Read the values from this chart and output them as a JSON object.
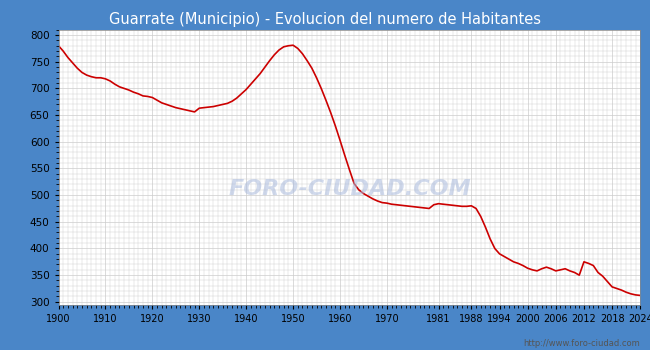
{
  "title": "Guarrate (Municipio) - Evolucion del numero de Habitantes",
  "title_color": "#ffffff",
  "title_bg_color": "#4a86c8",
  "line_color": "#cc0000",
  "bg_color": "#ffffff",
  "grid_color": "#cccccc",
  "url": "http://www.foro-ciudad.com",
  "watermark": "FORO-CIUDAD.COM",
  "ylim": [
    295,
    810
  ],
  "yticks": [
    300,
    350,
    400,
    450,
    500,
    550,
    600,
    650,
    700,
    750,
    800
  ],
  "xticks": [
    1900,
    1910,
    1920,
    1930,
    1940,
    1950,
    1960,
    1970,
    1981,
    1988,
    1994,
    2000,
    2006,
    2012,
    2018,
    2024
  ],
  "years": [
    1900,
    1901,
    1902,
    1903,
    1904,
    1905,
    1906,
    1907,
    1908,
    1909,
    1910,
    1911,
    1912,
    1913,
    1914,
    1915,
    1916,
    1917,
    1918,
    1919,
    1920,
    1921,
    1922,
    1923,
    1924,
    1925,
    1926,
    1927,
    1928,
    1929,
    1930,
    1931,
    1932,
    1933,
    1934,
    1935,
    1936,
    1937,
    1938,
    1939,
    1940,
    1941,
    1942,
    1943,
    1944,
    1945,
    1946,
    1947,
    1948,
    1949,
    1950,
    1951,
    1952,
    1953,
    1954,
    1955,
    1956,
    1957,
    1958,
    1959,
    1960,
    1961,
    1962,
    1963,
    1964,
    1965,
    1966,
    1967,
    1968,
    1969,
    1970,
    1971,
    1972,
    1973,
    1974,
    1975,
    1976,
    1977,
    1978,
    1979,
    1980,
    1981,
    1982,
    1983,
    1984,
    1985,
    1986,
    1987,
    1988,
    1989,
    1990,
    1991,
    1992,
    1993,
    1994,
    1995,
    1996,
    1997,
    1998,
    1999,
    2000,
    2001,
    2002,
    2003,
    2004,
    2005,
    2006,
    2007,
    2008,
    2009,
    2010,
    2011,
    2012,
    2013,
    2014,
    2015,
    2016,
    2017,
    2018,
    2019,
    2020,
    2021,
    2022,
    2023,
    2024
  ],
  "population": [
    780,
    770,
    758,
    748,
    738,
    730,
    725,
    722,
    720,
    720,
    718,
    714,
    708,
    703,
    700,
    697,
    693,
    690,
    686,
    685,
    683,
    678,
    673,
    670,
    667,
    664,
    662,
    660,
    658,
    656,
    663,
    664,
    665,
    666,
    668,
    670,
    672,
    676,
    682,
    690,
    698,
    708,
    718,
    728,
    740,
    752,
    763,
    772,
    778,
    780,
    781,
    775,
    765,
    752,
    738,
    720,
    700,
    678,
    655,
    630,
    603,
    575,
    548,
    522,
    510,
    503,
    498,
    493,
    489,
    486,
    485,
    483,
    482,
    481,
    480,
    479,
    478,
    477,
    476,
    475,
    482,
    484,
    483,
    482,
    481,
    480,
    479,
    479,
    480,
    475,
    460,
    440,
    418,
    400,
    390,
    385,
    380,
    375,
    372,
    368,
    363,
    360,
    358,
    362,
    365,
    362,
    358,
    360,
    362,
    358,
    355,
    350,
    375,
    372,
    368,
    355,
    348,
    338,
    328,
    325,
    322,
    318,
    315,
    313,
    312
  ]
}
